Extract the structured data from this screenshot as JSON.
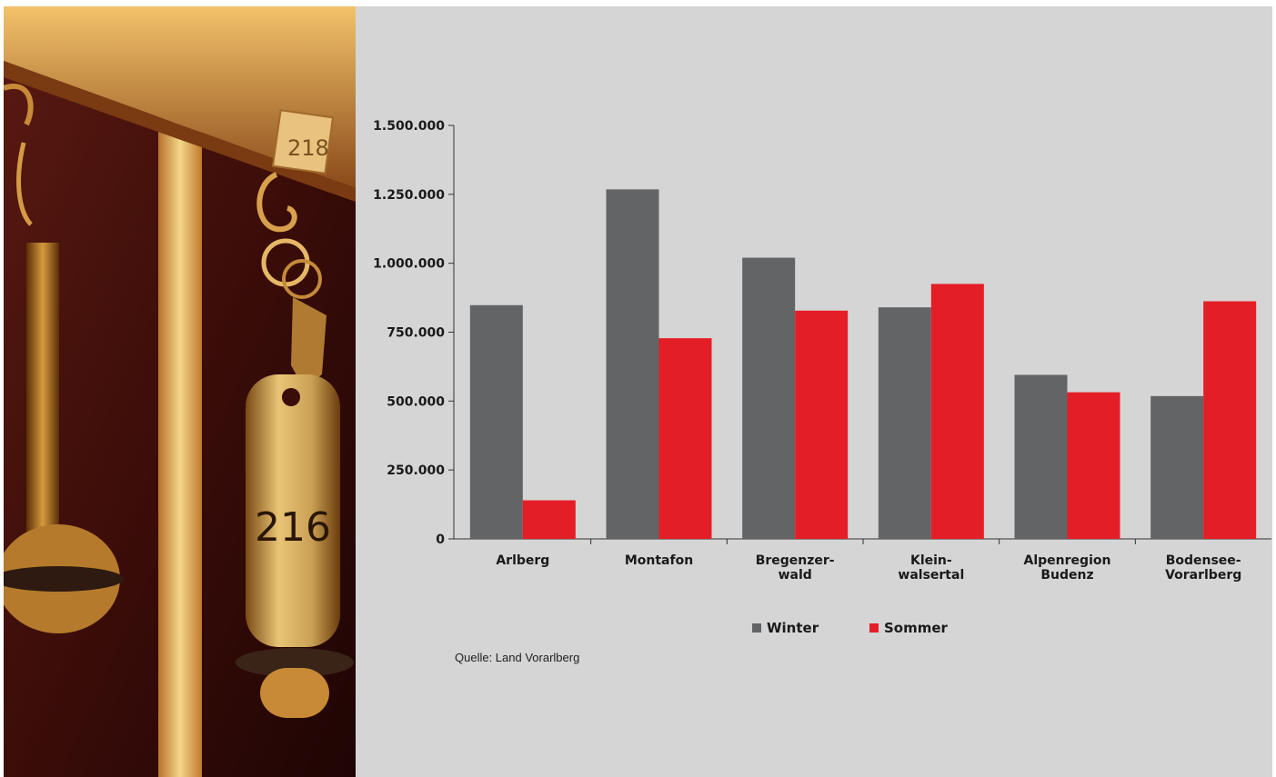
{
  "photo": {
    "key_tag_number": "216",
    "plate_number": "218"
  },
  "colors": {
    "winter": "#636466",
    "sommer": "#e41e26",
    "axis": "#333333"
  },
  "chart_data": {
    "type": "bar",
    "categories": [
      [
        "Arlberg"
      ],
      [
        "Montafon"
      ],
      [
        "Bregenzer-",
        "wald"
      ],
      [
        "Klein-",
        "walsertal"
      ],
      [
        "Alpenregion",
        "Budenz"
      ],
      [
        "Bodensee-",
        "Vorarlberg"
      ]
    ],
    "series": [
      {
        "name": "Winter",
        "values": [
          848000,
          1268000,
          1020000,
          840000,
          595000,
          518000
        ]
      },
      {
        "name": "Sommer",
        "values": [
          140000,
          728000,
          828000,
          925000,
          532000,
          862000
        ]
      }
    ],
    "ylim": [
      0,
      1500000
    ],
    "yticks": [
      "0",
      "250.000",
      "500.000",
      "750.000",
      "1.000.000",
      "1.250.000",
      "1.500.000"
    ],
    "ytick_values": [
      0,
      250000,
      500000,
      750000,
      1000000,
      1250000,
      1500000
    ],
    "legend_position": "bottom",
    "grid": false
  },
  "source": "Quelle: Land Vorarlberg"
}
